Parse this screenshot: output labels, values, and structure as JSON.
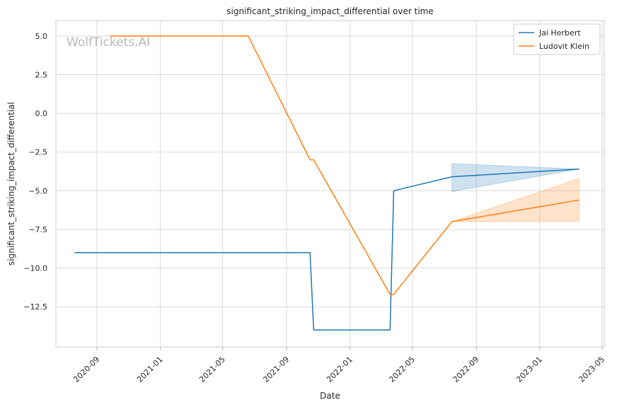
{
  "chart_data": {
    "type": "line",
    "title": "significant_striking_impact_differential over time",
    "xlabel": "Date",
    "ylabel": "significant_striking_impact_differential",
    "watermark": "WolfTickets.AI",
    "x_type": "date",
    "xlim": [
      "2020-06-14",
      "2023-05-05"
    ],
    "ylim": [
      -15.1,
      6.0
    ],
    "x_ticks": [
      "2020-09-01",
      "2021-01-01",
      "2021-05-01",
      "2021-09-01",
      "2022-01-01",
      "2022-05-01",
      "2022-09-01",
      "2023-01-01",
      "2023-05-01"
    ],
    "x_tick_labels": [
      "2020-09",
      "2021-01",
      "2021-05",
      "2021-09",
      "2022-01",
      "2022-05",
      "2022-09",
      "2023-01",
      "2023-05"
    ],
    "y_ticks": [
      5.0,
      2.5,
      0.0,
      -2.5,
      -5.0,
      -7.5,
      -10.0,
      -12.5
    ],
    "y_tick_labels": [
      "5.0",
      "2.5",
      "0.0",
      "−2.5",
      "−5.0",
      "−7.5",
      "−10.0",
      "−12.5"
    ],
    "grid": true,
    "legend_position": "top-right",
    "series": [
      {
        "name": "Jai Herbert",
        "color": "#1f77b4",
        "x": [
          "2020-07-20",
          "2021-10-16",
          "2021-10-23",
          "2022-03-19",
          "2022-03-26",
          "2022-07-16",
          "2023-03-18"
        ],
        "y": [
          -9.0,
          -9.0,
          -14.0,
          -14.0,
          -5.0,
          -4.1,
          -3.6
        ],
        "band": {
          "x": [
            "2022-07-16",
            "2023-03-18"
          ],
          "upper": [
            -3.25,
            -3.6
          ],
          "lower": [
            -5.05,
            -3.6
          ]
        }
      },
      {
        "name": "Ludovit Klein",
        "color": "#ff7f0e",
        "x": [
          "2020-09-26",
          "2021-06-19",
          "2021-10-16",
          "2021-10-23",
          "2022-03-19",
          "2022-03-26",
          "2022-07-16",
          "2023-03-18"
        ],
        "y": [
          5.0,
          5.0,
          -3.0,
          -3.0,
          -11.7,
          -11.7,
          -7.0,
          -5.6
        ],
        "band": {
          "x": [
            "2022-07-16",
            "2023-03-18"
          ],
          "upper": [
            -7.0,
            -4.2
          ],
          "lower": [
            -7.0,
            -7.0
          ]
        }
      }
    ]
  }
}
